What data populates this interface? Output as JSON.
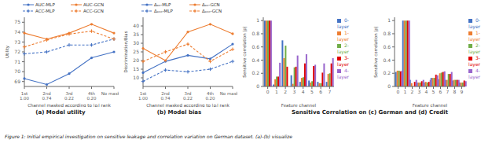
{
  "title": "Sensitive Correlation on (c) German and (d) Credit",
  "caption": "Figure 1: Initial empirical investigation on sensitive leakage and correlation variation on German dataset. (a)-(b) visualize",
  "chart_data": [
    {
      "type": "line",
      "title": "(a) Model utility",
      "xlabel": "Channel masked according to |ρᵢ| rank",
      "ylabel": "Utility",
      "categories": [
        "1st\n1.00",
        "2nd\n0.74",
        "3rd\n0.22",
        "4th\n0.20",
        "No masking"
      ],
      "ylim": [
        68.5,
        75.5
      ],
      "yticks": [
        69,
        70,
        71,
        72,
        73,
        74,
        75
      ],
      "grid": false,
      "legend": "top",
      "series": [
        {
          "name": "AUC-MLP",
          "color": "#4472c4",
          "marker": "circle",
          "line_style": "solid",
          "values": [
            69.3,
            68.7,
            69.8,
            71.4,
            72.0
          ]
        },
        {
          "name": "AUC-GCN",
          "color": "#ed7d31",
          "marker": "circle",
          "line_style": "solid",
          "values": [
            73.9,
            73.3,
            73.9,
            74.8,
            73.9
          ]
        },
        {
          "name": "ACC-MLP",
          "color": "#4472c4",
          "marker": "plus",
          "line_style": "dashed",
          "values": [
            71.8,
            72.0,
            72.7,
            72.7,
            73.3
          ]
        },
        {
          "name": "ACC-GCN",
          "color": "#ed7d31",
          "marker": "plus",
          "line_style": "dashed",
          "values": [
            72.5,
            73.2,
            73.8,
            74.1,
            73.3
          ]
        }
      ]
    },
    {
      "type": "line",
      "title": "(b) Model bias",
      "xlabel": "Channel masked according to |ρᵢ| rank",
      "ylabel": "Discrimination/Bias",
      "categories": [
        "1st\n1.00",
        "2nd\n0.74",
        "3rd\n0.22",
        "4th\n0.20",
        "No masking"
      ],
      "ylim": [
        5,
        45
      ],
      "yticks": [
        10,
        15,
        20,
        25,
        30,
        35,
        40
      ],
      "grid": false,
      "legend": "top",
      "series": [
        {
          "name": "Δₑₒ-MLP",
          "color": "#4472c4",
          "marker": "circle",
          "line_style": "solid",
          "values": [
            13.0,
            19.5,
            23.0,
            21.0,
            29.5
          ]
        },
        {
          "name": "Δₑₒ-GCN",
          "color": "#ed7d31",
          "marker": "circle",
          "line_style": "solid",
          "values": [
            27.0,
            20.0,
            36.5,
            41.0,
            35.5
          ]
        },
        {
          "name": "Δₑₒₒ-MLP",
          "color": "#4472c4",
          "marker": "plus",
          "line_style": "dashed",
          "values": [
            8.0,
            14.5,
            13.5,
            15.0,
            19.5
          ]
        },
        {
          "name": "Δₑₒₒ-GCN",
          "color": "#ed7d31",
          "marker": "plus",
          "line_style": "dashed",
          "values": [
            19.5,
            25.0,
            29.5,
            19.5,
            26.5
          ]
        }
      ]
    },
    {
      "type": "bar",
      "xlabel": "Feature channel",
      "ylabel": "Sensitive correlation |ρ|",
      "categories": [
        "0",
        "1",
        "2",
        "3",
        "4",
        "5",
        "6",
        "7"
      ],
      "ylim": [
        0,
        1.05
      ],
      "yticks": [
        0,
        0.2,
        0.4,
        0.6,
        0.8,
        1
      ],
      "grid": false,
      "legend": "right",
      "series": [
        {
          "name": "0-layer",
          "color": "#4472c4",
          "values": [
            1.0,
            0.03,
            0.7,
            0.17,
            0.07,
            0.09,
            0.07,
            0.07
          ]
        },
        {
          "name": "1-layer",
          "color": "#ed7d31",
          "values": [
            1.0,
            0.11,
            0.43,
            0.04,
            0.13,
            0.06,
            0.05,
            0.19
          ]
        },
        {
          "name": "2-layer",
          "color": "#70ad47",
          "values": [
            1.0,
            0.15,
            0.62,
            0.29,
            0.14,
            0.08,
            0.05,
            0.2
          ]
        },
        {
          "name": "3-layer",
          "color": "#e00000",
          "values": [
            1.0,
            0.15,
            0.3,
            0.3,
            0.35,
            0.31,
            0.21,
            0.35
          ]
        },
        {
          "name": "4-layer",
          "color": "#9966cc",
          "values": [
            1.0,
            0.36,
            0.0,
            0.47,
            0.49,
            0.33,
            0.35,
            0.43
          ]
        }
      ]
    },
    {
      "type": "bar",
      "xlabel": "Feature channel",
      "ylabel": "Sensitive correlation |ρ|",
      "categories": [
        "0",
        "1",
        "2",
        "3",
        "4",
        "5",
        "6",
        "7",
        "8",
        "9"
      ],
      "ylim": [
        0,
        1.05
      ],
      "yticks": [
        0,
        0.2,
        0.4,
        0.6,
        0.8,
        1
      ],
      "grid": false,
      "legend": "right",
      "series": [
        {
          "name": "0-layer",
          "color": "#4472c4",
          "values": [
            0.22,
            1.0,
            0.1,
            0.06,
            0.06,
            0.13,
            0.11,
            0.1,
            0.09,
            0.06
          ]
        },
        {
          "name": "1-layer",
          "color": "#ed7d31",
          "values": [
            0.24,
            1.0,
            0.05,
            0.06,
            0.07,
            0.13,
            0.2,
            0.1,
            0.1,
            0.06
          ]
        },
        {
          "name": "2-layer",
          "color": "#70ad47",
          "values": [
            0.24,
            1.0,
            0.0,
            0.06,
            0.06,
            0.13,
            0.21,
            0.19,
            0.1,
            0.06
          ]
        },
        {
          "name": "3-layer",
          "color": "#e00000",
          "values": [
            0.23,
            1.0,
            0.07,
            0.08,
            0.07,
            0.18,
            0.22,
            0.19,
            0.1,
            0.09
          ]
        },
        {
          "name": "4-layer",
          "color": "#9966cc",
          "values": [
            0.24,
            1.0,
            0.1,
            0.1,
            0.1,
            0.17,
            0.23,
            0.22,
            0.1,
            0.08
          ]
        }
      ]
    }
  ]
}
